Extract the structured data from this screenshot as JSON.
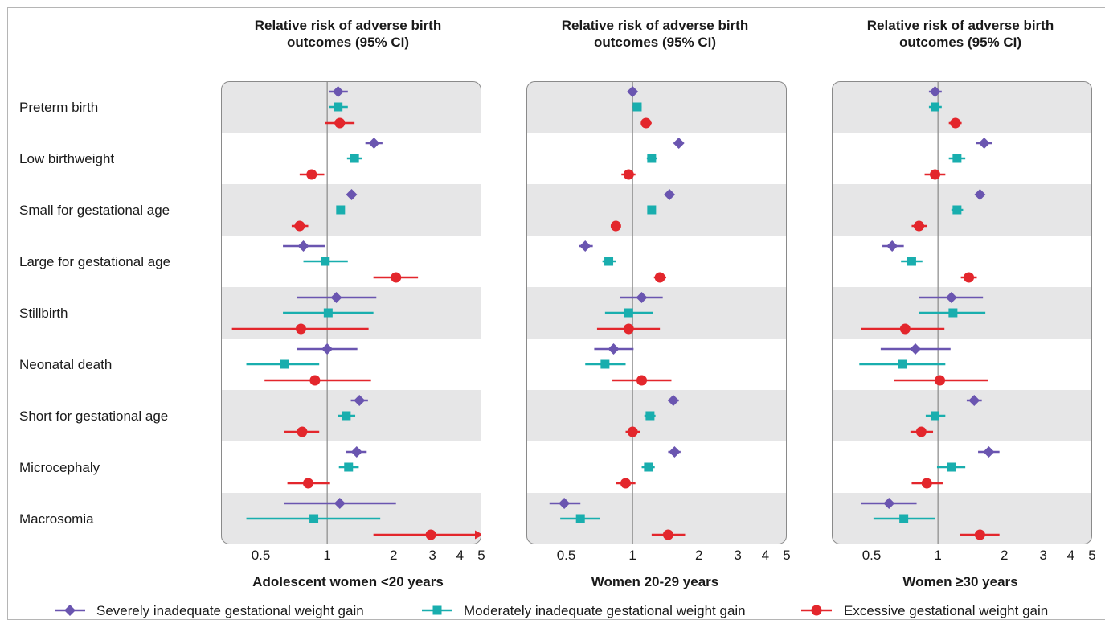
{
  "panel_header": "Relative risk of adverse birth outcomes (95% CI)",
  "outcomes": [
    "Preterm birth",
    "Low birthweight",
    "Small for gestational age",
    "Large for gestational age",
    "Stillbirth",
    "Neonatal death",
    "Short for gestational age",
    "Microcephaly",
    "Macrosomia"
  ],
  "colors": {
    "severe": "#6a55b0",
    "moderate": "#19aeae",
    "excessive": "#e3262c",
    "band": "#e6e6e7",
    "refline": "#888888"
  },
  "chart_data": {
    "type": "scatter",
    "scale": "log",
    "xlim": [
      0.33,
      5.0
    ],
    "xticks": [
      0.5,
      1,
      2,
      3,
      4,
      5
    ],
    "xtick_labels": [
      "0.5",
      "1",
      "2",
      "3",
      "4",
      "5"
    ],
    "reference_line": 1,
    "legend": {
      "position": "bottom"
    },
    "series": [
      {
        "name": "Severely inadequate gestational weight gain",
        "marker": "diamond",
        "color": "#6a55b0"
      },
      {
        "name": "Moderately inadequate gestational weight gain",
        "marker": "square",
        "color": "#19aeae"
      },
      {
        "name": "Excessive gestational weight gain",
        "marker": "circle",
        "color": "#e3262c"
      }
    ],
    "panels": [
      {
        "xlabel": "Adolescent women <20 years",
        "rows": [
          [
            [
              1.12,
              1.02,
              1.24
            ],
            [
              1.12,
              1.02,
              1.24
            ],
            [
              1.14,
              0.98,
              1.33
            ]
          ],
          [
            [
              1.63,
              1.49,
              1.78
            ],
            [
              1.33,
              1.23,
              1.44
            ],
            [
              0.85,
              0.75,
              0.97
            ]
          ],
          [
            [
              1.29,
              1.24,
              1.34
            ],
            [
              1.15,
              1.1,
              1.2
            ],
            [
              0.75,
              0.69,
              0.82
            ]
          ],
          [
            [
              0.78,
              0.63,
              0.98
            ],
            [
              0.98,
              0.78,
              1.24
            ],
            [
              2.05,
              1.62,
              2.58
            ]
          ],
          [
            [
              1.1,
              0.73,
              1.67
            ],
            [
              1.01,
              0.63,
              1.62
            ],
            [
              0.76,
              0.37,
              1.54
            ]
          ],
          [
            [
              1.0,
              0.73,
              1.37
            ],
            [
              0.64,
              0.43,
              0.92
            ],
            [
              0.88,
              0.52,
              1.58
            ]
          ],
          [
            [
              1.4,
              1.28,
              1.53
            ],
            [
              1.22,
              1.12,
              1.34
            ],
            [
              0.77,
              0.64,
              0.92
            ]
          ],
          [
            [
              1.36,
              1.22,
              1.51
            ],
            [
              1.25,
              1.13,
              1.39
            ],
            [
              0.82,
              0.66,
              1.03
            ]
          ],
          [
            [
              1.14,
              0.64,
              2.05
            ],
            [
              0.87,
              0.43,
              1.74
            ],
            [
              2.95,
              1.62,
              5.0
            ]
          ]
        ]
      },
      {
        "xlabel": "Women 20-29 years",
        "rows": [
          [
            [
              1.0,
              0.97,
              1.03
            ],
            [
              1.05,
              1.0,
              1.1
            ],
            [
              1.15,
              1.09,
              1.22
            ]
          ],
          [
            [
              1.62,
              1.54,
              1.7
            ],
            [
              1.22,
              1.16,
              1.29
            ],
            [
              0.96,
              0.89,
              1.03
            ]
          ],
          [
            [
              1.47,
              1.43,
              1.51
            ],
            [
              1.22,
              1.19,
              1.25
            ],
            [
              0.84,
              0.8,
              0.88
            ]
          ],
          [
            [
              0.61,
              0.57,
              0.66
            ],
            [
              0.78,
              0.73,
              0.84
            ],
            [
              1.33,
              1.25,
              1.42
            ]
          ],
          [
            [
              1.1,
              0.88,
              1.37
            ],
            [
              0.96,
              0.75,
              1.24
            ],
            [
              0.96,
              0.69,
              1.33
            ]
          ],
          [
            [
              0.82,
              0.67,
              1.01
            ],
            [
              0.75,
              0.61,
              0.93
            ],
            [
              1.1,
              0.81,
              1.5
            ]
          ],
          [
            [
              1.53,
              1.45,
              1.62
            ],
            [
              1.2,
              1.13,
              1.27
            ],
            [
              1.0,
              0.93,
              1.08
            ]
          ],
          [
            [
              1.55,
              1.45,
              1.65
            ],
            [
              1.18,
              1.1,
              1.26
            ],
            [
              0.93,
              0.84,
              1.03
            ]
          ],
          [
            [
              0.49,
              0.42,
              0.58
            ],
            [
              0.58,
              0.47,
              0.71
            ],
            [
              1.45,
              1.22,
              1.73
            ]
          ]
        ]
      },
      {
        "xlabel": "Women ≥30 years",
        "rows": [
          [
            [
              0.97,
              0.91,
              1.04
            ],
            [
              0.97,
              0.91,
              1.04
            ],
            [
              1.2,
              1.12,
              1.28
            ]
          ],
          [
            [
              1.62,
              1.49,
              1.76
            ],
            [
              1.22,
              1.12,
              1.33
            ],
            [
              0.97,
              0.87,
              1.08
            ]
          ],
          [
            [
              1.55,
              1.48,
              1.62
            ],
            [
              1.22,
              1.15,
              1.3
            ],
            [
              0.82,
              0.76,
              0.89
            ]
          ],
          [
            [
              0.62,
              0.56,
              0.7
            ],
            [
              0.76,
              0.68,
              0.85
            ],
            [
              1.38,
              1.27,
              1.5
            ]
          ],
          [
            [
              1.15,
              0.82,
              1.6
            ],
            [
              1.17,
              0.82,
              1.64
            ],
            [
              0.71,
              0.45,
              1.07
            ]
          ],
          [
            [
              0.79,
              0.55,
              1.14
            ],
            [
              0.69,
              0.44,
              1.08
            ],
            [
              1.02,
              0.63,
              1.68
            ]
          ],
          [
            [
              1.46,
              1.35,
              1.58
            ],
            [
              0.97,
              0.88,
              1.08
            ],
            [
              0.84,
              0.75,
              0.95
            ]
          ],
          [
            [
              1.7,
              1.52,
              1.9
            ],
            [
              1.15,
              0.99,
              1.33
            ],
            [
              0.89,
              0.76,
              1.05
            ]
          ],
          [
            [
              0.6,
              0.45,
              0.8
            ],
            [
              0.7,
              0.51,
              0.97
            ],
            [
              1.55,
              1.26,
              1.9
            ]
          ]
        ]
      }
    ]
  }
}
